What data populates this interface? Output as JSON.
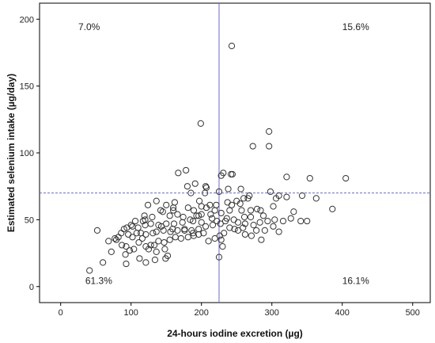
{
  "chart_data": {
    "type": "scatter",
    "title": "",
    "xlabel": "24-hours iodine excretion (µg)",
    "ylabel": "Estimated selenium intake (µg/day)",
    "xlim": [
      -30,
      525
    ],
    "ylim": [
      -12,
      212
    ],
    "x_ticks": [
      0,
      100,
      200,
      300,
      400,
      500
    ],
    "y_ticks": [
      0,
      50,
      100,
      150,
      200
    ],
    "grid": false,
    "legend": "none",
    "reference_lines": {
      "vertical_x": 225,
      "horizontal_y": 70,
      "vertical_color": "#6b6bc2",
      "horizontal_color": "#6b6bc2",
      "horizontal_style": "dashed"
    },
    "quadrant_labels": [
      {
        "text": "7.0%",
        "x": 25,
        "y": 192
      },
      {
        "text": "15.6%",
        "x": 400,
        "y": 192
      },
      {
        "text": "61.3%",
        "x": 35,
        "y": 2
      },
      {
        "text": "16.1%",
        "x": 400,
        "y": 2
      }
    ],
    "marker_color": "#333333",
    "points": [
      [
        243,
        180
      ],
      [
        199,
        122
      ],
      [
        296,
        116
      ],
      [
        273,
        105
      ],
      [
        296,
        105
      ],
      [
        231,
        85
      ],
      [
        244,
        84
      ],
      [
        242,
        84
      ],
      [
        178,
        87
      ],
      [
        167,
        85
      ],
      [
        228,
        83
      ],
      [
        321,
        82
      ],
      [
        354,
        81
      ],
      [
        405,
        81
      ],
      [
        191,
        77
      ],
      [
        206,
        75
      ],
      [
        207,
        74
      ],
      [
        180,
        75
      ],
      [
        238,
        73
      ],
      [
        298,
        71
      ],
      [
        225,
        71
      ],
      [
        205,
        70
      ],
      [
        185,
        70
      ],
      [
        256,
        73
      ],
      [
        268,
        68
      ],
      [
        321,
        67
      ],
      [
        343,
        68
      ],
      [
        306,
        66
      ],
      [
        266,
        66
      ],
      [
        250,
        64
      ],
      [
        255,
        62
      ],
      [
        260,
        66
      ],
      [
        197,
        64
      ],
      [
        162,
        63
      ],
      [
        150,
        61
      ],
      [
        221,
        61
      ],
      [
        243,
        61
      ],
      [
        200,
        60
      ],
      [
        279,
        58
      ],
      [
        284,
        57
      ],
      [
        363,
        66
      ],
      [
        386,
        58
      ],
      [
        302,
        60
      ],
      [
        310,
        68
      ],
      [
        124,
        61
      ],
      [
        136,
        64
      ],
      [
        119,
        53
      ],
      [
        120,
        50
      ],
      [
        117,
        49
      ],
      [
        100,
        46
      ],
      [
        106,
        49
      ],
      [
        130,
        52
      ],
      [
        142,
        57
      ],
      [
        145,
        56
      ],
      [
        160,
        57
      ],
      [
        160,
        59
      ],
      [
        181,
        59
      ],
      [
        189,
        57
      ],
      [
        166,
        54
      ],
      [
        155,
        53
      ],
      [
        196,
        53
      ],
      [
        213,
        54
      ],
      [
        228,
        55
      ],
      [
        240,
        57
      ],
      [
        257,
        57
      ],
      [
        270,
        57
      ],
      [
        200,
        48
      ],
      [
        188,
        49
      ],
      [
        173,
        48
      ],
      [
        161,
        47
      ],
      [
        150,
        47
      ],
      [
        139,
        46
      ],
      [
        128,
        47
      ],
      [
        120,
        46
      ],
      [
        110,
        44
      ],
      [
        102,
        45
      ],
      [
        94,
        44
      ],
      [
        90,
        43
      ],
      [
        86,
        40
      ],
      [
        82,
        37
      ],
      [
        77,
        36
      ],
      [
        96,
        39
      ],
      [
        108,
        40
      ],
      [
        114,
        40
      ],
      [
        121,
        39
      ],
      [
        131,
        40
      ],
      [
        136,
        41
      ],
      [
        146,
        42
      ],
      [
        156,
        41
      ],
      [
        166,
        42
      ],
      [
        176,
        43
      ],
      [
        186,
        42
      ],
      [
        196,
        43
      ],
      [
        206,
        45
      ],
      [
        216,
        46
      ],
      [
        227,
        47
      ],
      [
        234,
        49
      ],
      [
        246,
        50
      ],
      [
        252,
        48
      ],
      [
        262,
        47
      ],
      [
        274,
        46
      ],
      [
        283,
        48
      ],
      [
        294,
        49
      ],
      [
        304,
        50
      ],
      [
        316,
        49
      ],
      [
        327,
        51
      ],
      [
        341,
        49
      ],
      [
        350,
        49
      ],
      [
        331,
        56
      ],
      [
        302,
        45
      ],
      [
        310,
        41
      ],
      [
        285,
        35
      ],
      [
        271,
        38
      ],
      [
        247,
        43
      ],
      [
        240,
        44
      ],
      [
        232,
        40
      ],
      [
        226,
        38
      ],
      [
        219,
        36
      ],
      [
        210,
        34
      ],
      [
        203,
        40
      ],
      [
        196,
        39
      ],
      [
        189,
        38
      ],
      [
        181,
        37
      ],
      [
        171,
        36
      ],
      [
        163,
        37
      ],
      [
        155,
        35
      ],
      [
        147,
        33
      ],
      [
        139,
        34
      ],
      [
        133,
        31
      ],
      [
        128,
        31
      ],
      [
        121,
        30
      ],
      [
        111,
        33
      ],
      [
        104,
        28
      ],
      [
        98,
        27
      ],
      [
        92,
        24
      ],
      [
        93,
        30
      ],
      [
        112,
        21
      ],
      [
        125,
        28
      ],
      [
        136,
        26
      ],
      [
        148,
        28
      ],
      [
        152,
        23
      ],
      [
        149,
        21
      ],
      [
        134,
        20
      ],
      [
        121,
        18
      ],
      [
        93,
        17
      ],
      [
        60,
        18
      ],
      [
        68,
        34
      ],
      [
        72,
        26
      ],
      [
        52,
        42
      ],
      [
        41,
        12
      ],
      [
        225,
        22
      ],
      [
        230,
        30
      ],
      [
        228,
        35
      ],
      [
        236,
        51
      ],
      [
        252,
        42
      ],
      [
        261,
        52
      ],
      [
        259,
        44
      ],
      [
        215,
        51
      ],
      [
        222,
        49
      ],
      [
        207,
        59
      ],
      [
        237,
        63
      ],
      [
        188,
        40
      ],
      [
        176,
        42
      ],
      [
        159,
        43
      ],
      [
        143,
        45
      ],
      [
        116,
        36
      ],
      [
        102,
        37
      ],
      [
        79,
        35
      ],
      [
        87,
        31
      ],
      [
        174,
        52
      ],
      [
        184,
        50
      ],
      [
        193,
        53
      ],
      [
        212,
        61
      ],
      [
        200,
        54
      ],
      [
        219,
        57
      ],
      [
        262,
        39
      ],
      [
        278,
        42
      ],
      [
        290,
        42
      ],
      [
        288,
        53
      ],
      [
        270,
        52
      ]
    ]
  }
}
